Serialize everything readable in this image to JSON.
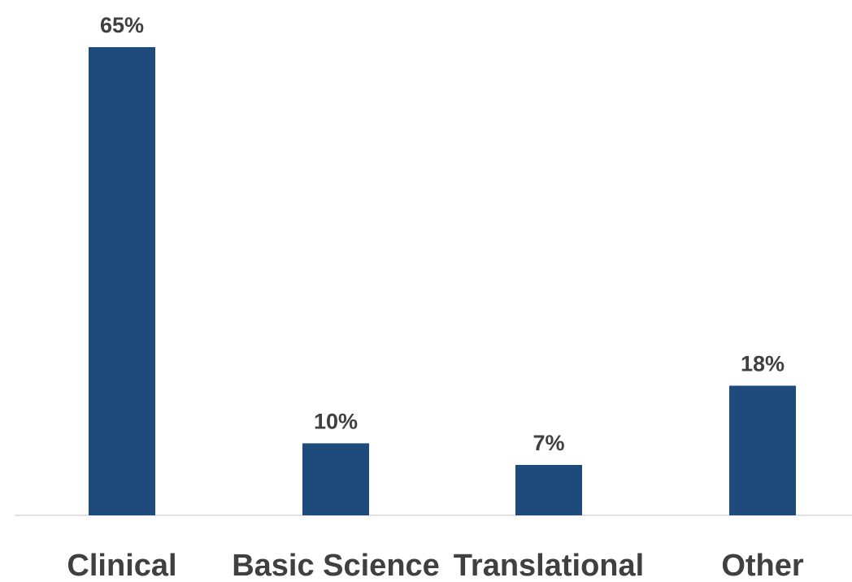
{
  "chart_data": {
    "type": "bar",
    "categories": [
      "Clinical",
      "Basic Science",
      "Translational",
      "Other"
    ],
    "values": [
      65,
      10,
      7,
      18
    ],
    "value_labels": [
      "65%",
      "10%",
      "7%",
      "18%"
    ],
    "unit": "%",
    "ylim": [
      0,
      65
    ],
    "grid": false,
    "legend": "none",
    "bar_color": "#1f4a7c",
    "axis_color": "#d9d9d9",
    "text_color": "#404040"
  }
}
